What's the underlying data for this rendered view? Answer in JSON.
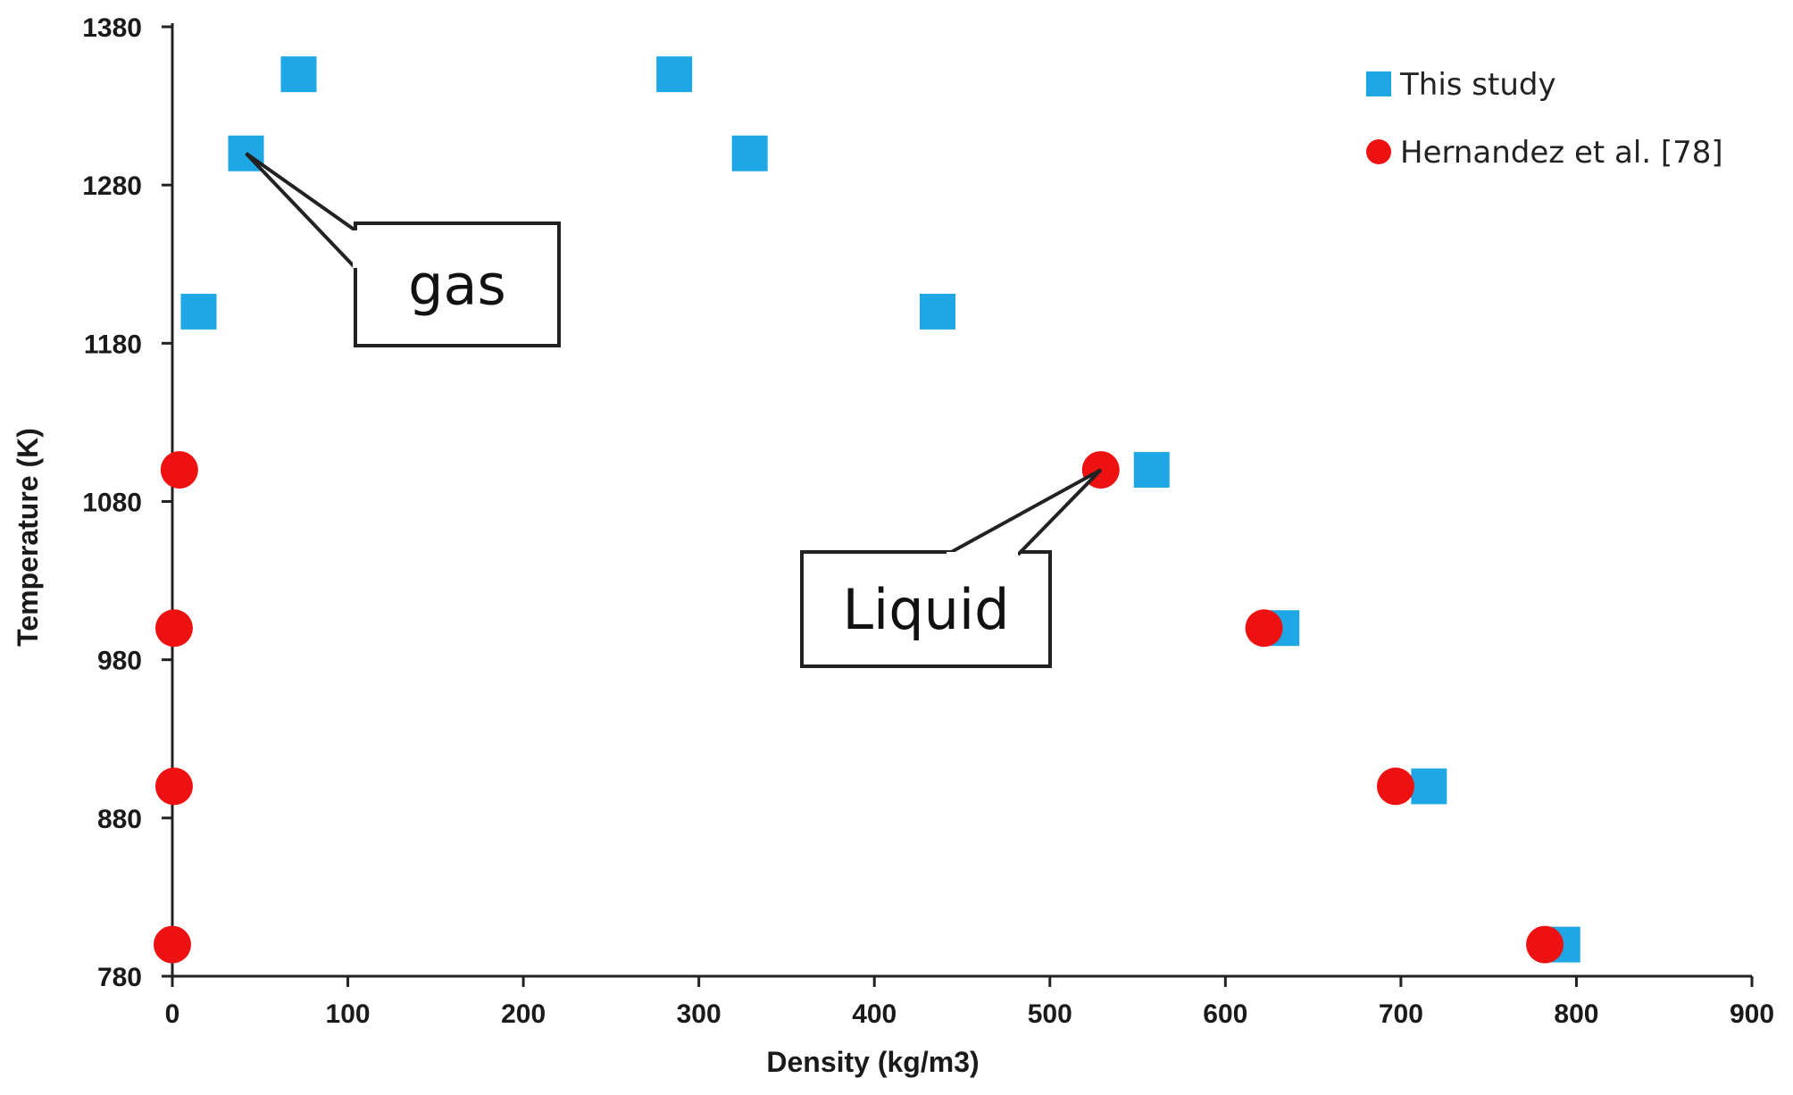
{
  "chart_data": {
    "type": "scatter",
    "title": "",
    "xlabel": "Density (kg/m3)",
    "ylabel": "Temperature (K)",
    "xlim": [
      0,
      900
    ],
    "ylim": [
      780,
      1380
    ],
    "x_ticks": [
      0,
      100,
      200,
      300,
      400,
      500,
      600,
      700,
      800,
      900
    ],
    "y_ticks": [
      780,
      880,
      980,
      1080,
      1180,
      1280,
      1380
    ],
    "grid": false,
    "legend_position": "top-right",
    "series": [
      {
        "name": "This study",
        "marker": "square",
        "color": "#1ea7e4",
        "points": [
          {
            "x": 15,
            "y": 1200
          },
          {
            "x": 42,
            "y": 1300
          },
          {
            "x": 72,
            "y": 1350
          },
          {
            "x": 286,
            "y": 1350
          },
          {
            "x": 329,
            "y": 1300
          },
          {
            "x": 436,
            "y": 1200
          },
          {
            "x": 558,
            "y": 1100
          },
          {
            "x": 632,
            "y": 1000
          },
          {
            "x": 716,
            "y": 900
          },
          {
            "x": 792,
            "y": 800
          }
        ]
      },
      {
        "name": "Hernandez et al. [78]",
        "marker": "circle",
        "color": "#ee1111",
        "points": [
          {
            "x": 4,
            "y": 1100
          },
          {
            "x": 1,
            "y": 1000
          },
          {
            "x": 1,
            "y": 900
          },
          {
            "x": 0,
            "y": 800
          },
          {
            "x": 529,
            "y": 1100
          },
          {
            "x": 622,
            "y": 1000
          },
          {
            "x": 697,
            "y": 900
          },
          {
            "x": 782,
            "y": 800
          }
        ]
      }
    ],
    "annotations": [
      {
        "text": "gas",
        "target": {
          "x": 42,
          "y": 1300
        }
      },
      {
        "text": "Liquid",
        "target": {
          "x": 529,
          "y": 1100
        }
      }
    ]
  }
}
